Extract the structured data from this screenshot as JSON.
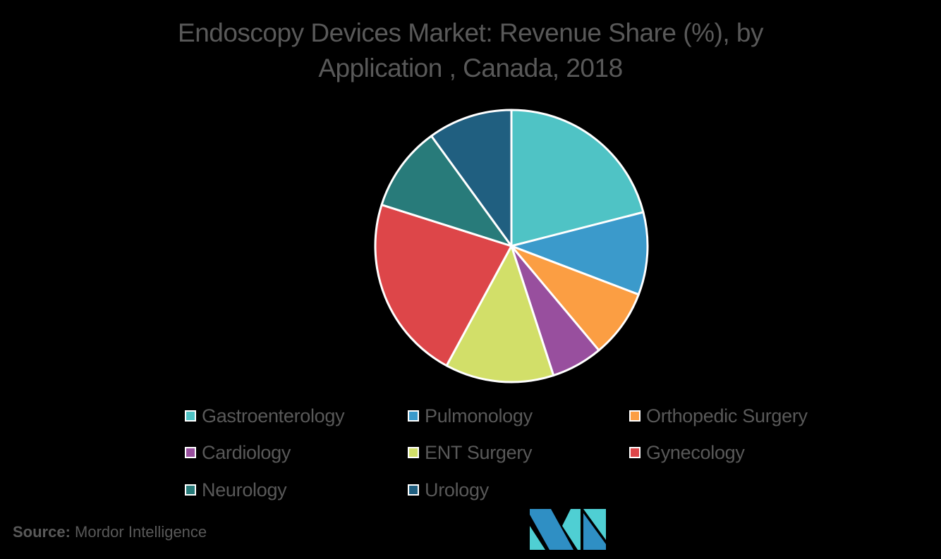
{
  "title": {
    "line1": "Endoscopy Devices Market: Revenue Share (%), by",
    "line2": "Application , Canada, 2018"
  },
  "chart_data": {
    "type": "pie",
    "title": "Endoscopy Devices Market: Revenue Share (%), by Application , Canada, 2018",
    "categories": [
      "Gastroenterology",
      "Pulmonology",
      "Orthopedic Surgery",
      "Cardiology",
      "ENT Surgery",
      "Gynecology",
      "Neurology",
      "Urology"
    ],
    "values": [
      21.0,
      9.8,
      8.1,
      6.1,
      12.9,
      22.0,
      10.1,
      10.0
    ],
    "colors": [
      "#4fc3c5",
      "#3b9acb",
      "#fb9e43",
      "#984f9e",
      "#d2df69",
      "#dd4649",
      "#287b7a",
      "#205f80"
    ],
    "start_angle_deg": 0,
    "direction": "clockwise",
    "legend_position": "bottom",
    "data_labels": false,
    "note": "Values estimated from slice angles; no numeric labels shown"
  },
  "legend": {
    "items": [
      {
        "label": "Gastroenterology",
        "color": "#4fc3c5"
      },
      {
        "label": "Pulmonology",
        "color": "#3b9acb"
      },
      {
        "label": "Orthopedic Surgery",
        "color": "#fb9e43"
      },
      {
        "label": "Cardiology",
        "color": "#984f9e"
      },
      {
        "label": "ENT Surgery",
        "color": "#d2df69"
      },
      {
        "label": "Gynecology",
        "color": "#dd4649"
      },
      {
        "label": "Neurology",
        "color": "#287b7a"
      },
      {
        "label": "Urology",
        "color": "#205f80"
      }
    ]
  },
  "source": {
    "label": "Source:",
    "value": "Mordor Intelligence"
  },
  "logo": {
    "name": "Mordor Intelligence logo",
    "colors": [
      "#2f8fc4",
      "#4fcfd3"
    ]
  }
}
